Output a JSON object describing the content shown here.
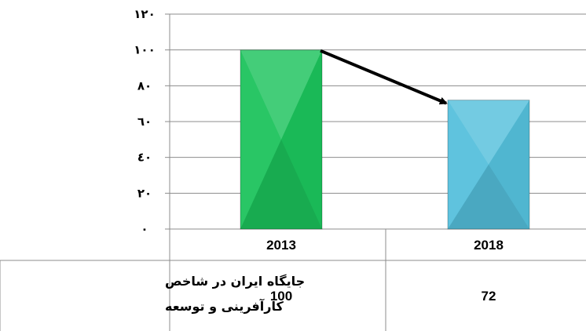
{
  "chart_data": {
    "type": "bar",
    "categories": [
      "2013",
      "2018"
    ],
    "series": [
      {
        "name": "جایگاه ایران در شاخص کارآفرینی و توسعه",
        "values": [
          100,
          72
        ]
      }
    ],
    "y_ticks": [
      "۰",
      "۲۰",
      "٤۰",
      "٦۰",
      "۸۰",
      "۱۰۰",
      "۱۲۰"
    ],
    "ylim": [
      0,
      120
    ],
    "grid": true,
    "table_row_label_lines": [
      "جایگاه ایران در شاخص",
      "کارآفرینی و توسعه"
    ],
    "table_values": [
      "100",
      "72"
    ],
    "colors": {
      "bar_2013": "#1cc35c",
      "bar_2018": "#55c0dc",
      "grid": "#8c8c8c",
      "arrow": "#000000"
    }
  }
}
